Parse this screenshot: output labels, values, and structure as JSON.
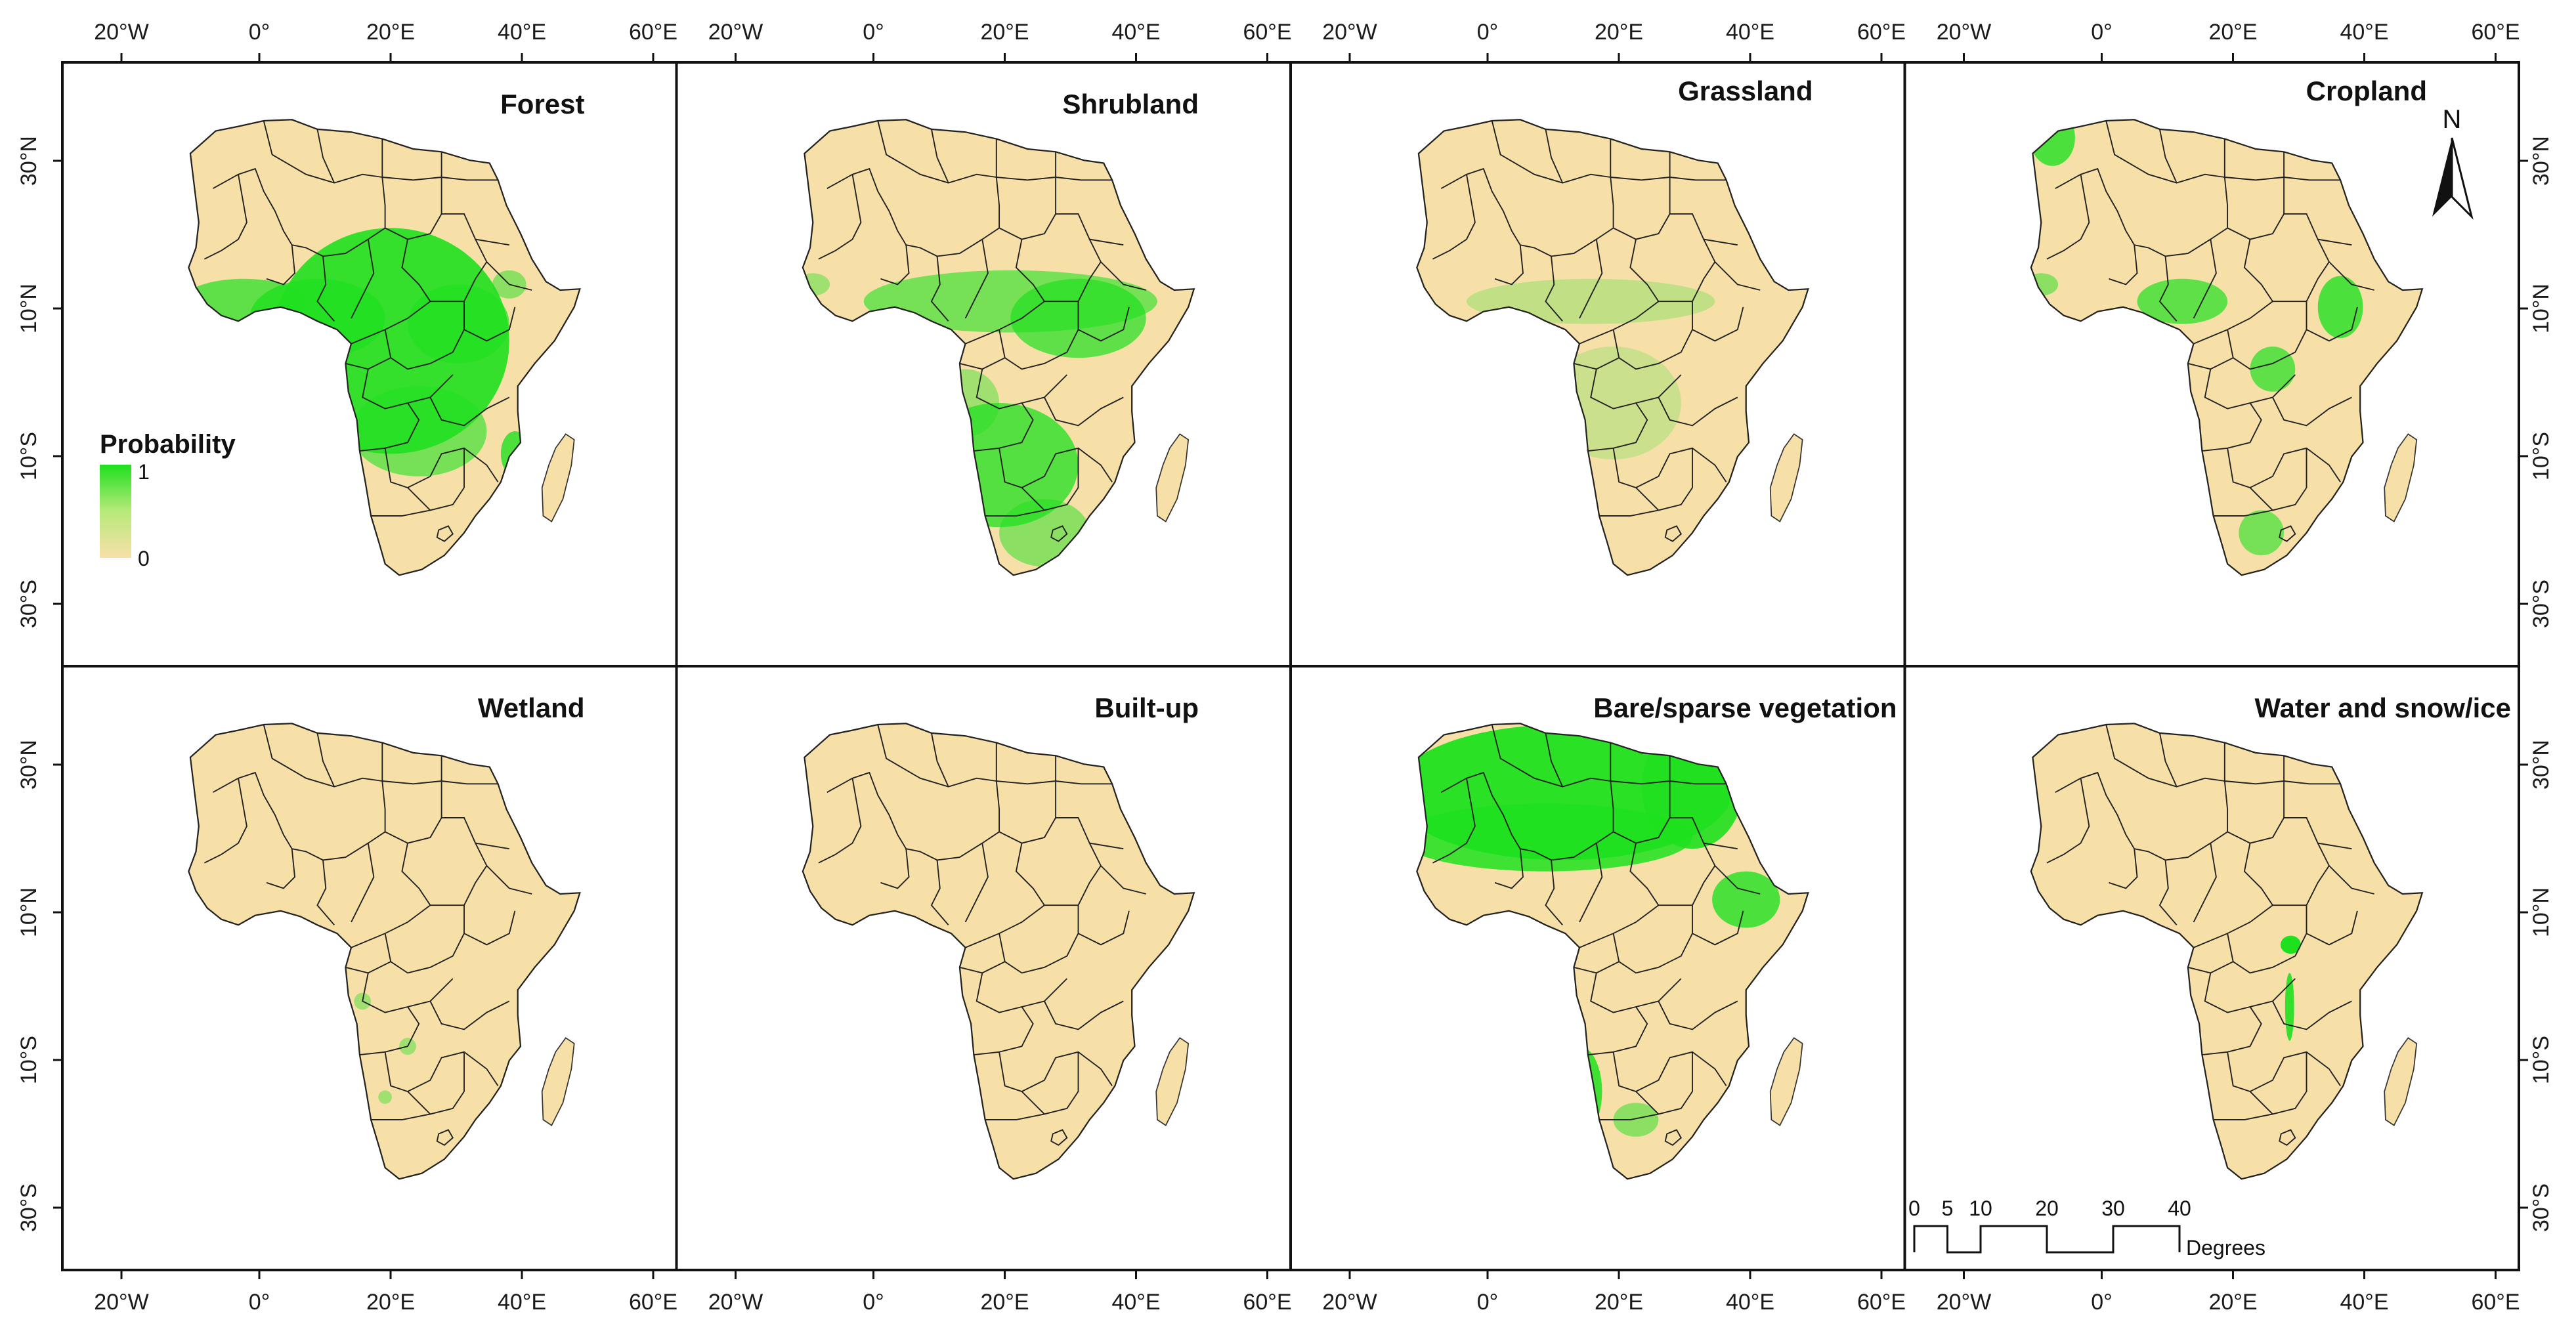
{
  "panels": [
    {
      "id": "forest",
      "title": "Forest"
    },
    {
      "id": "shrubland",
      "title": "Shrubland"
    },
    {
      "id": "grassland",
      "title": "Grassland"
    },
    {
      "id": "cropland",
      "title": "Cropland"
    },
    {
      "id": "wetland",
      "title": "Wetland"
    },
    {
      "id": "builtup",
      "title": "Built-up"
    },
    {
      "id": "bare",
      "title": "Bare/sparse vegetation"
    },
    {
      "id": "water",
      "title": "Water and snow/ice"
    }
  ],
  "axes": {
    "x_ticks": [
      "20°W",
      "0°",
      "20°E",
      "40°E",
      "60°E"
    ],
    "y_ticks": [
      "30°N",
      "10°N",
      "10°S",
      "30°S"
    ]
  },
  "legend": {
    "title": "Probability",
    "max_label": "1",
    "min_label": "0"
  },
  "scale_bar": {
    "labels": [
      "0",
      "5",
      "10",
      "20",
      "30",
      "40"
    ],
    "unit": "Degrees"
  },
  "north_arrow": {
    "label": "N"
  },
  "colors": {
    "land_base": "#f7e0a8",
    "high_probability": "#1fe01f",
    "border": "#222222"
  }
}
